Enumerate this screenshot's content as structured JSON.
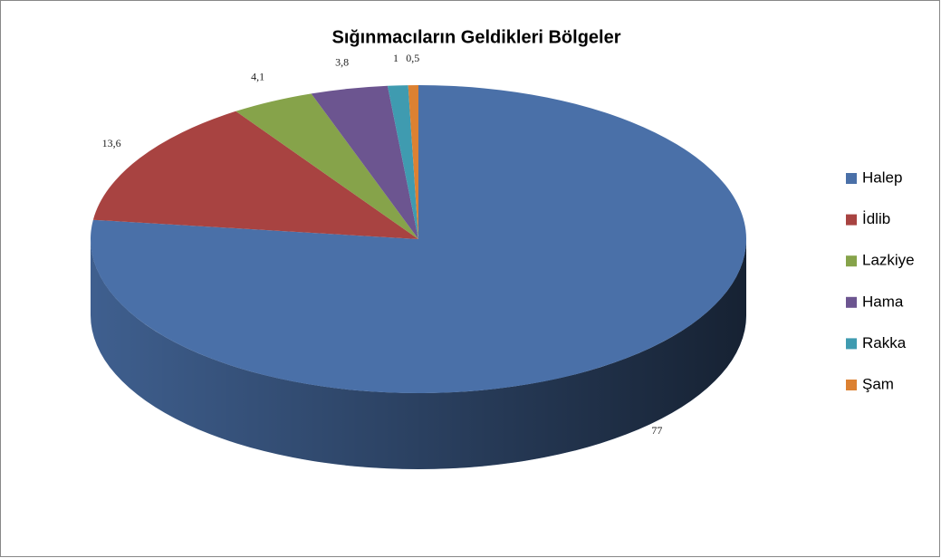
{
  "chart_data": {
    "type": "pie",
    "title": "Sığınmacıların Geldikleri Bölgeler",
    "categories": [
      "Halep",
      "İdlib",
      "Lazkiye",
      "Hama",
      "Rakka",
      "Şam"
    ],
    "values": [
      77,
      13.6,
      4.1,
      3.8,
      1,
      0.5
    ],
    "value_labels": [
      "77",
      "13,6",
      "4,1",
      "3,8",
      "1",
      "0,5"
    ],
    "colors": [
      "#4a70a8",
      "#a84341",
      "#86a34a",
      "#6c5590",
      "#3f9bb0",
      "#dc8132"
    ],
    "legend": "right"
  }
}
